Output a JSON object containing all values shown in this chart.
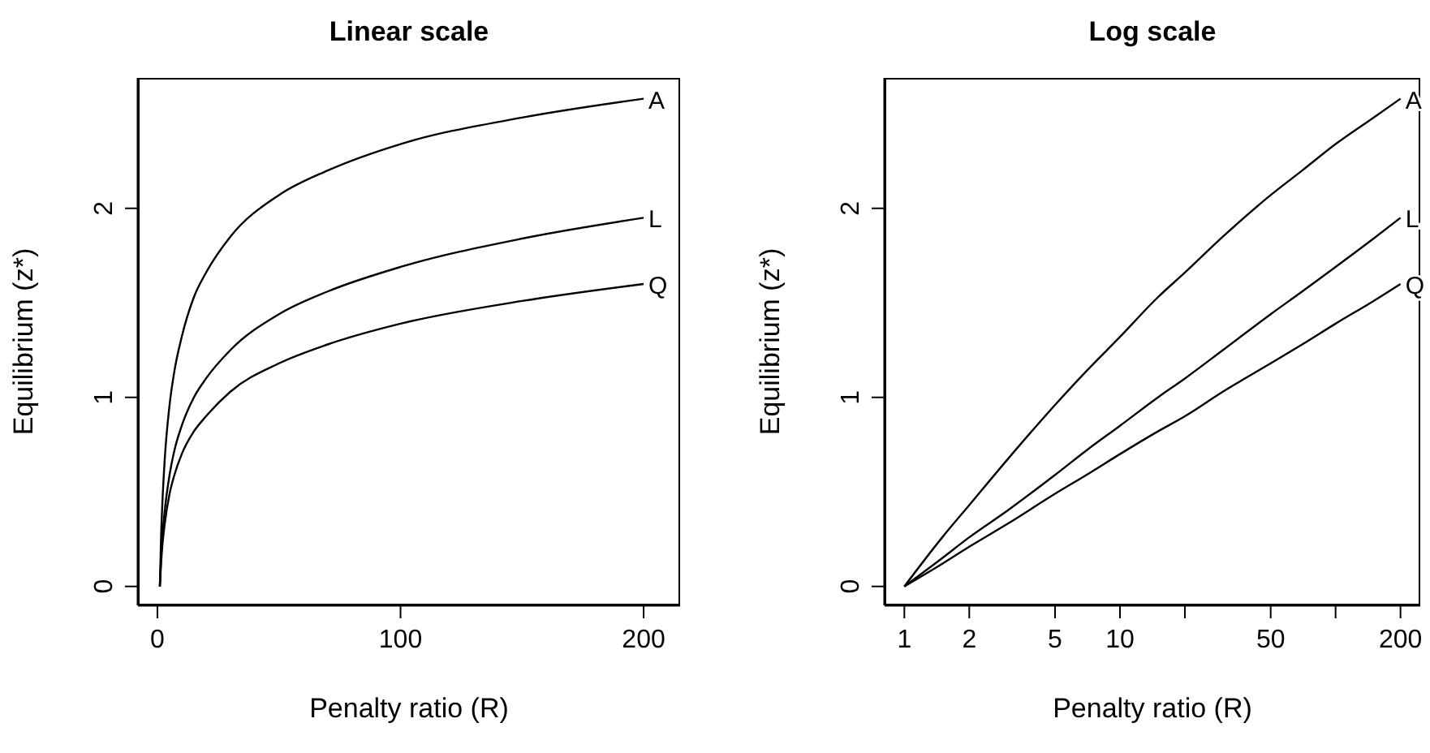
{
  "chart_data": [
    {
      "type": "line",
      "title": "Linear scale",
      "xlabel": "Penalty ratio (R)",
      "ylabel": "Equilibrium (z*)",
      "x": [
        1,
        1.5,
        2,
        3,
        5,
        7,
        10,
        15,
        20,
        30,
        50,
        70,
        100,
        150,
        200
      ],
      "series": [
        {
          "name": "A",
          "color": "#000000",
          "values": [
            0,
            0.26,
            0.43,
            0.67,
            0.96,
            1.14,
            1.32,
            1.53,
            1.66,
            1.85,
            2.07,
            2.2,
            2.34,
            2.48,
            2.58
          ]
        },
        {
          "name": "L",
          "color": "#000000",
          "values": [
            0,
            0.15,
            0.26,
            0.4,
            0.59,
            0.72,
            0.85,
            1.0,
            1.1,
            1.25,
            1.44,
            1.56,
            1.69,
            1.84,
            1.95
          ]
        },
        {
          "name": "Q",
          "color": "#000000",
          "values": [
            0,
            0.12,
            0.21,
            0.33,
            0.49,
            0.59,
            0.7,
            0.82,
            0.9,
            1.03,
            1.18,
            1.28,
            1.39,
            1.51,
            1.6
          ]
        }
      ],
      "xlim": [
        -8,
        215
      ],
      "ylim": [
        -0.1,
        2.69
      ],
      "xticks": [
        0,
        100,
        200
      ],
      "yticks": [
        0,
        1,
        2
      ],
      "marker": "none",
      "line_style": "solid"
    },
    {
      "type": "line",
      "title": "Log scale",
      "xlabel": "Penalty ratio (R)",
      "ylabel": "Equilibrium (z*)",
      "x": [
        1,
        1.5,
        2,
        3,
        5,
        7,
        10,
        15,
        20,
        30,
        50,
        70,
        100,
        150,
        200
      ],
      "series": [
        {
          "name": "A",
          "color": "#000000",
          "values": [
            0,
            0.26,
            0.43,
            0.67,
            0.96,
            1.14,
            1.32,
            1.53,
            1.66,
            1.85,
            2.07,
            2.2,
            2.34,
            2.48,
            2.58
          ]
        },
        {
          "name": "L",
          "color": "#000000",
          "values": [
            0,
            0.15,
            0.26,
            0.4,
            0.59,
            0.72,
            0.85,
            1.0,
            1.1,
            1.25,
            1.44,
            1.56,
            1.69,
            1.84,
            1.95
          ]
        },
        {
          "name": "Q",
          "color": "#000000",
          "values": [
            0,
            0.12,
            0.21,
            0.33,
            0.49,
            0.59,
            0.7,
            0.82,
            0.9,
            1.03,
            1.18,
            1.28,
            1.39,
            1.51,
            1.6
          ]
        }
      ],
      "xlim": [
        0.81,
        247
      ],
      "ylim": [
        -0.1,
        2.69
      ],
      "xticks": [
        1,
        2,
        5,
        10,
        {
          "value": 20,
          "label": null
        },
        50,
        {
          "value": 100,
          "label": null
        },
        200
      ],
      "yticks": [
        0,
        1,
        2
      ],
      "log": "x",
      "marker": "none",
      "line_style": "solid"
    }
  ]
}
